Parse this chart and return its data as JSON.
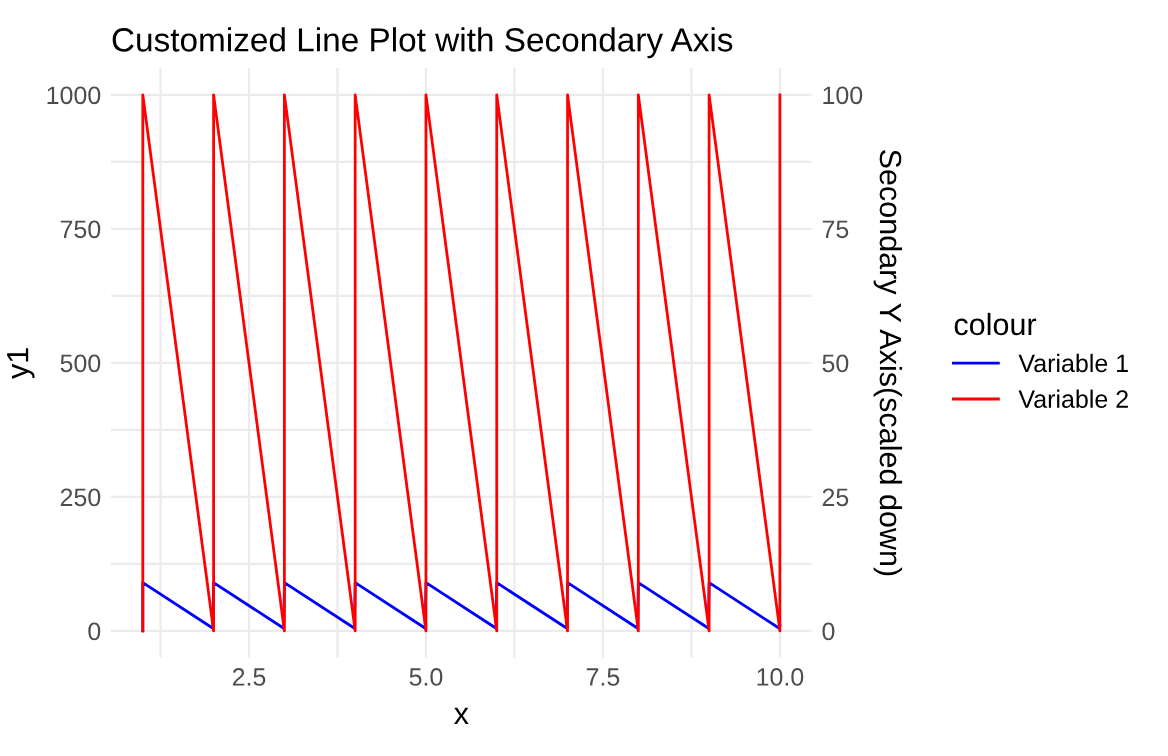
{
  "chart_data": {
    "type": "line",
    "title": "Customized Line Plot with Secondary Axis",
    "xlabel": "x",
    "ylabel": "y1",
    "y2label": "Secondary Y Axis(scaled down)",
    "legend_title": "colour",
    "legend": "right",
    "grid": true,
    "series": [
      {
        "name": "Variable 1",
        "color": "#0000ff",
        "x": [
          1,
          1,
          1.99,
          2,
          2.99,
          3,
          3.99,
          4,
          4.99,
          5,
          5.99,
          6,
          6.99,
          7,
          7.99,
          8,
          8.99,
          9,
          9.99,
          10
        ],
        "values": [
          0,
          90,
          5,
          90,
          5,
          90,
          5,
          90,
          5,
          90,
          5,
          90,
          5,
          90,
          5,
          90,
          5,
          90,
          5,
          10
        ]
      },
      {
        "name": "Variable 2",
        "color": "#ff0000",
        "x": [
          1,
          1,
          1.99,
          2,
          2,
          2.99,
          3,
          3,
          3.99,
          4,
          4,
          4.99,
          5,
          5,
          5.99,
          6,
          6,
          6.99,
          7,
          7,
          7.99,
          8,
          8,
          8.99,
          9,
          9,
          9.99,
          10,
          10
        ],
        "values": [
          0,
          1000,
          10,
          0,
          1000,
          10,
          0,
          1000,
          10,
          0,
          1000,
          10,
          0,
          1000,
          10,
          0,
          1000,
          10,
          0,
          1000,
          10,
          0,
          1000,
          10,
          0,
          1000,
          10,
          0,
          1000
        ]
      }
    ],
    "xlim": [
      0.55,
      10.45
    ],
    "xticks": [
      {
        "value": 1.25,
        "label": null
      },
      {
        "value": 2.5,
        "label": "2.5"
      },
      {
        "value": 3.75,
        "label": null
      },
      {
        "value": 5,
        "label": "5.0"
      },
      {
        "value": 6.25,
        "label": null
      },
      {
        "value": 7.5,
        "label": "7.5"
      },
      {
        "value": 8.75,
        "label": null
      },
      {
        "value": 10,
        "label": "10.0"
      }
    ],
    "ylim": [
      -50,
      1050
    ],
    "yticks": [
      0,
      {
        "value": 125,
        "label": null
      },
      250,
      {
        "value": 375,
        "label": null
      },
      500,
      {
        "value": 625,
        "label": null
      },
      750,
      {
        "value": 875,
        "label": null
      },
      1000
    ],
    "y2lim": [
      -5,
      105
    ],
    "y2ticks": [
      0,
      25,
      50,
      75,
      100
    ]
  }
}
